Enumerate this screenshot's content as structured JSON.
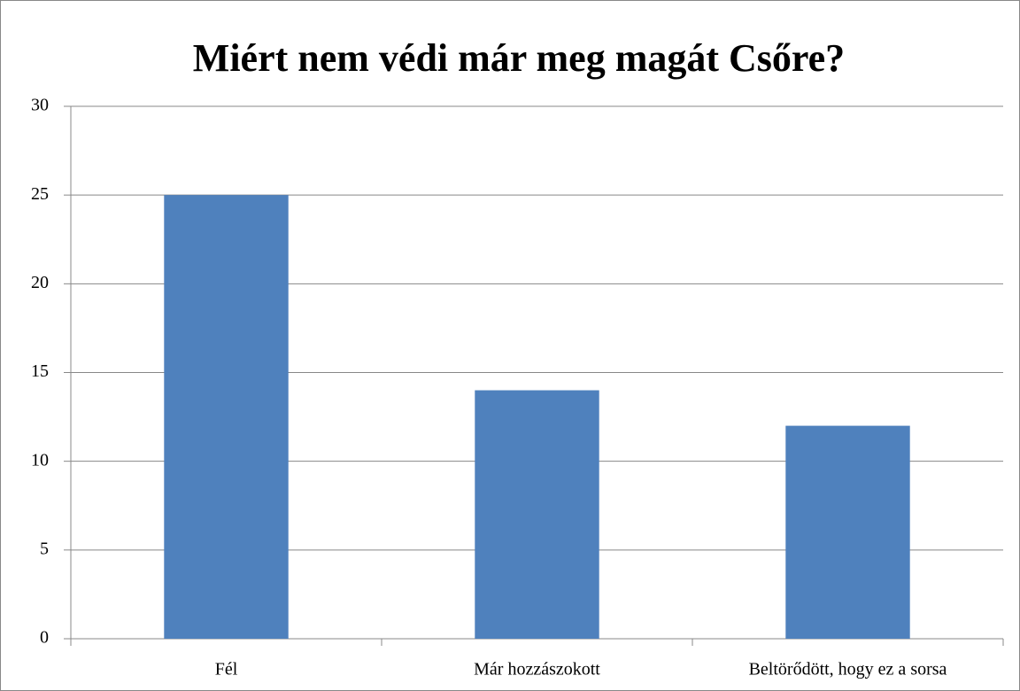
{
  "chart_data": {
    "type": "bar",
    "title": "Miért nem védi már meg magát Csőre?",
    "categories": [
      "Fél",
      "Már hozzászokott",
      "Beltörődött, hogy ez a sorsa"
    ],
    "values": [
      25,
      14,
      12
    ],
    "color": "#4f81bd",
    "ylim": [
      0,
      30
    ],
    "yticks": [
      0,
      5,
      10,
      15,
      20,
      25,
      30
    ],
    "grid": true
  }
}
